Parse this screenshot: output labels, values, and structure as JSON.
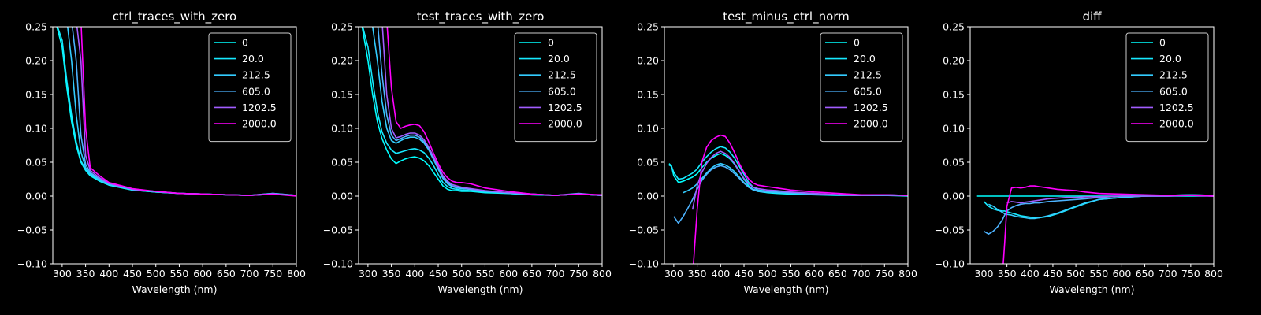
{
  "figure": {
    "background": "#000000",
    "foreground": "#ffffff"
  },
  "chart_data": [
    {
      "type": "line",
      "title": "ctrl_traces_with_zero",
      "xlabel": "Wavelength (nm)",
      "ylabel": "",
      "xlim": [
        280,
        800
      ],
      "ylim": [
        -0.1,
        0.25
      ],
      "xticks": [
        "300",
        "350",
        "400",
        "450",
        "500",
        "550",
        "600",
        "650",
        "700",
        "750",
        "800"
      ],
      "yticks": [
        "−0.10",
        "−0.05",
        "0.00",
        "0.05",
        "0.10",
        "0.15",
        "0.20",
        "0.25"
      ],
      "legend_position": "top-right",
      "x": [
        285,
        300,
        310,
        320,
        330,
        340,
        350,
        360,
        380,
        400,
        450,
        500,
        550,
        600,
        650,
        700,
        750,
        800
      ],
      "series": [
        {
          "name": "0",
          "color": "#00ffff",
          "values": [
            0.26,
            0.22,
            0.16,
            0.11,
            0.075,
            0.05,
            0.038,
            0.03,
            0.022,
            0.016,
            0.009,
            0.006,
            0.004,
            0.003,
            0.002,
            0.001,
            0.003,
            0.001
          ]
        },
        {
          "name": "20.0",
          "color": "#16e9ff",
          "values": [
            0.26,
            0.23,
            0.17,
            0.12,
            0.08,
            0.052,
            0.039,
            0.031,
            0.023,
            0.017,
            0.009,
            0.006,
            0.004,
            0.003,
            0.002,
            0.001,
            0.003,
            0.001
          ]
        },
        {
          "name": "212.5",
          "color": "#33ccff",
          "values": [
            0.26,
            0.26,
            0.26,
            0.2,
            0.12,
            0.065,
            0.042,
            0.033,
            0.024,
            0.017,
            0.01,
            0.006,
            0.004,
            0.003,
            0.002,
            0.001,
            0.004,
            0.001
          ]
        },
        {
          "name": "605.0",
          "color": "#4db3ff",
          "values": [
            0.26,
            0.26,
            0.26,
            0.26,
            0.2,
            0.09,
            0.047,
            0.035,
            0.025,
            0.018,
            0.01,
            0.007,
            0.004,
            0.003,
            0.002,
            0.001,
            0.004,
            0.001
          ]
        },
        {
          "name": "1202.5",
          "color": "#a25dff",
          "values": [
            0.26,
            0.26,
            0.26,
            0.26,
            0.26,
            0.2,
            0.06,
            0.038,
            0.027,
            0.019,
            0.01,
            0.007,
            0.004,
            0.003,
            0.002,
            0.001,
            0.003,
            0.001
          ]
        },
        {
          "name": "2000.0",
          "color": "#ff00ff",
          "values": [
            0.26,
            0.26,
            0.26,
            0.26,
            0.26,
            0.26,
            0.1,
            0.042,
            0.03,
            0.02,
            0.011,
            0.007,
            0.004,
            0.003,
            0.002,
            0.001,
            0.003,
            0.0
          ]
        }
      ]
    },
    {
      "type": "line",
      "title": "test_traces_with_zero",
      "xlabel": "Wavelength (nm)",
      "ylabel": "",
      "xlim": [
        280,
        800
      ],
      "ylim": [
        -0.1,
        0.25
      ],
      "xticks": [
        "300",
        "350",
        "400",
        "450",
        "500",
        "550",
        "600",
        "650",
        "700",
        "750",
        "800"
      ],
      "yticks": [
        "−0.10",
        "−0.05",
        "0.00",
        "0.05",
        "0.10",
        "0.15",
        "0.20",
        "0.25"
      ],
      "legend_position": "top-right",
      "x": [
        285,
        300,
        310,
        320,
        330,
        340,
        350,
        360,
        370,
        380,
        390,
        400,
        410,
        420,
        430,
        440,
        450,
        460,
        470,
        480,
        490,
        500,
        520,
        550,
        600,
        650,
        700,
        750,
        800
      ],
      "series": [
        {
          "name": "0",
          "color": "#00ffff",
          "values": [
            0.26,
            0.2,
            0.15,
            0.11,
            0.085,
            0.068,
            0.055,
            0.048,
            0.052,
            0.055,
            0.057,
            0.058,
            0.056,
            0.052,
            0.045,
            0.035,
            0.025,
            0.015,
            0.01,
            0.008,
            0.008,
            0.007,
            0.007,
            0.005,
            0.004,
            0.002,
            0.001,
            0.003,
            0.001
          ]
        },
        {
          "name": "20.0",
          "color": "#16e9ff",
          "values": [
            0.26,
            0.22,
            0.17,
            0.125,
            0.095,
            0.078,
            0.068,
            0.063,
            0.065,
            0.067,
            0.069,
            0.07,
            0.068,
            0.064,
            0.056,
            0.045,
            0.032,
            0.02,
            0.014,
            0.011,
            0.01,
            0.009,
            0.008,
            0.006,
            0.004,
            0.002,
            0.001,
            0.003,
            0.001
          ]
        },
        {
          "name": "212.5",
          "color": "#33ccff",
          "values": [
            0.26,
            0.26,
            0.25,
            0.2,
            0.14,
            0.1,
            0.082,
            0.078,
            0.082,
            0.085,
            0.087,
            0.087,
            0.084,
            0.078,
            0.068,
            0.054,
            0.04,
            0.026,
            0.018,
            0.014,
            0.012,
            0.011,
            0.01,
            0.007,
            0.005,
            0.003,
            0.001,
            0.003,
            0.001
          ]
        },
        {
          "name": "605.0",
          "color": "#4db3ff",
          "values": [
            0.26,
            0.26,
            0.26,
            0.26,
            0.18,
            0.12,
            0.09,
            0.082,
            0.085,
            0.088,
            0.09,
            0.09,
            0.087,
            0.08,
            0.07,
            0.056,
            0.042,
            0.028,
            0.02,
            0.015,
            0.013,
            0.012,
            0.01,
            0.007,
            0.005,
            0.003,
            0.001,
            0.004,
            0.001
          ]
        },
        {
          "name": "1202.5",
          "color": "#a25dff",
          "values": [
            0.26,
            0.26,
            0.26,
            0.26,
            0.26,
            0.15,
            0.1,
            0.086,
            0.088,
            0.091,
            0.093,
            0.093,
            0.09,
            0.083,
            0.072,
            0.058,
            0.044,
            0.03,
            0.022,
            0.017,
            0.015,
            0.013,
            0.011,
            0.008,
            0.005,
            0.003,
            0.001,
            0.003,
            0.001
          ]
        },
        {
          "name": "2000.0",
          "color": "#ff00ff",
          "values": [
            0.26,
            0.26,
            0.26,
            0.26,
            0.26,
            0.26,
            0.16,
            0.11,
            0.1,
            0.103,
            0.105,
            0.106,
            0.104,
            0.095,
            0.08,
            0.063,
            0.048,
            0.035,
            0.027,
            0.022,
            0.02,
            0.02,
            0.018,
            0.012,
            0.007,
            0.003,
            0.001,
            0.003,
            0.002
          ]
        }
      ]
    },
    {
      "type": "line",
      "title": "test_minus_ctrl_norm",
      "xlabel": "Wavelength (nm)",
      "ylabel": "",
      "xlim": [
        280,
        800
      ],
      "ylim": [
        -0.1,
        0.25
      ],
      "xticks": [
        "300",
        "350",
        "400",
        "450",
        "500",
        "550",
        "600",
        "650",
        "700",
        "750",
        "800"
      ],
      "yticks": [
        "−0.10",
        "−0.05",
        "0.00",
        "0.05",
        "0.10",
        "0.15",
        "0.20",
        "0.25"
      ],
      "legend_position": "top-right",
      "x": [
        290,
        295,
        300,
        310,
        320,
        330,
        340,
        350,
        360,
        370,
        380,
        390,
        400,
        410,
        420,
        430,
        440,
        450,
        460,
        470,
        480,
        490,
        500,
        520,
        550,
        600,
        650,
        700,
        750,
        800
      ],
      "series": [
        {
          "name": "0",
          "color": "#00ffff",
          "values": [
            0.048,
            0.045,
            0.03,
            0.02,
            0.022,
            0.025,
            0.028,
            0.033,
            0.042,
            0.05,
            0.056,
            0.06,
            0.063,
            0.06,
            0.055,
            0.047,
            0.036,
            0.025,
            0.015,
            0.01,
            0.007,
            0.006,
            0.005,
            0.004,
            0.003,
            0.002,
            0.001,
            0.001,
            0.001,
            0.001
          ]
        },
        {
          "name": "20.0",
          "color": "#16e9ff",
          "values": [
            0.046,
            0.044,
            0.035,
            0.025,
            0.026,
            0.03,
            0.034,
            0.04,
            0.05,
            0.058,
            0.065,
            0.07,
            0.073,
            0.071,
            0.065,
            0.056,
            0.044,
            0.032,
            0.02,
            0.013,
            0.009,
            0.008,
            0.007,
            0.005,
            0.004,
            0.003,
            0.002,
            0.001,
            0.001,
            0.0
          ]
        },
        {
          "name": "212.5",
          "color": "#33ccff",
          "values": [
            null,
            null,
            null,
            null,
            0.005,
            0.008,
            0.012,
            0.018,
            0.026,
            0.034,
            0.041,
            0.046,
            0.048,
            0.046,
            0.042,
            0.036,
            0.028,
            0.02,
            0.013,
            0.009,
            0.007,
            0.006,
            0.006,
            0.005,
            0.004,
            0.003,
            0.002,
            0.001,
            0.002,
            0.001
          ]
        },
        {
          "name": "605.0",
          "color": "#4db3ff",
          "values": [
            null,
            null,
            -0.03,
            -0.04,
            -0.03,
            -0.018,
            -0.005,
            0.01,
            0.023,
            0.032,
            0.039,
            0.043,
            0.045,
            0.043,
            0.039,
            0.033,
            0.026,
            0.019,
            0.013,
            0.01,
            0.008,
            0.007,
            0.007,
            0.006,
            0.005,
            0.003,
            0.002,
            0.001,
            0.001,
            0.001
          ]
        },
        {
          "name": "1202.5",
          "color": "#a25dff",
          "values": [
            null,
            null,
            null,
            null,
            null,
            null,
            -0.02,
            0.015,
            0.035,
            0.048,
            0.057,
            0.063,
            0.066,
            0.063,
            0.057,
            0.048,
            0.037,
            0.026,
            0.018,
            0.013,
            0.011,
            0.01,
            0.009,
            0.008,
            0.006,
            0.004,
            0.002,
            0.001,
            0.002,
            0.001
          ]
        },
        {
          "name": "2000.0",
          "color": "#ff00ff",
          "values": [
            null,
            null,
            null,
            null,
            null,
            null,
            -0.12,
            -0.02,
            0.05,
            0.072,
            0.082,
            0.087,
            0.09,
            0.088,
            0.078,
            0.064,
            0.048,
            0.035,
            0.025,
            0.019,
            0.016,
            0.015,
            0.014,
            0.012,
            0.009,
            0.006,
            0.004,
            0.002,
            0.002,
            0.001
          ]
        }
      ]
    },
    {
      "type": "line",
      "title": "diff",
      "xlabel": "Wavelength (nm)",
      "ylabel": "",
      "xlim": [
        270,
        800
      ],
      "ylim": [
        -0.1,
        0.25
      ],
      "xticks": [
        "300",
        "350",
        "400",
        "450",
        "500",
        "550",
        "600",
        "650",
        "700",
        "750",
        "800"
      ],
      "yticks": [
        "−0.10",
        "−0.05",
        "0.00",
        "0.05",
        "0.10",
        "0.15",
        "0.20",
        "0.25"
      ],
      "legend_position": "top-right",
      "x": [
        285,
        290,
        300,
        310,
        320,
        330,
        340,
        345,
        350,
        360,
        370,
        380,
        390,
        400,
        410,
        420,
        440,
        460,
        480,
        500,
        520,
        550,
        600,
        650,
        700,
        750,
        800
      ],
      "series": [
        {
          "name": "0",
          "color": "#00ffff",
          "values": [
            0.0,
            0.0,
            0.0,
            0.0,
            0.0,
            0.0,
            0.0,
            0.0,
            0.0,
            0.0,
            0.0,
            0.0,
            0.0,
            0.0,
            0.0,
            0.0,
            0.0,
            0.0,
            0.0,
            0.0,
            0.0,
            0.0,
            0.0,
            0.0,
            0.0,
            0.0,
            0.0
          ]
        },
        {
          "name": "20.0",
          "color": "#16e9ff",
          "values": [
            null,
            null,
            -0.008,
            -0.015,
            -0.019,
            -0.021,
            -0.022,
            -0.022,
            -0.023,
            -0.025,
            -0.027,
            -0.029,
            -0.03,
            -0.031,
            -0.032,
            -0.032,
            -0.03,
            -0.026,
            -0.021,
            -0.016,
            -0.011,
            -0.005,
            -0.002,
            0.0,
            0.0,
            0.001,
            0.0
          ]
        },
        {
          "name": "212.5",
          "color": "#33ccff",
          "values": [
            null,
            null,
            null,
            -0.012,
            -0.015,
            -0.02,
            -0.024,
            -0.026,
            -0.027,
            -0.028,
            -0.03,
            -0.031,
            -0.032,
            -0.033,
            -0.033,
            -0.032,
            -0.029,
            -0.025,
            -0.02,
            -0.015,
            -0.01,
            -0.005,
            -0.002,
            0.0,
            0.001,
            0.002,
            0.001
          ]
        },
        {
          "name": "605.0",
          "color": "#4db3ff",
          "values": [
            null,
            null,
            -0.052,
            -0.056,
            -0.052,
            -0.045,
            -0.035,
            -0.028,
            -0.022,
            -0.017,
            -0.014,
            -0.012,
            -0.011,
            -0.011,
            -0.01,
            -0.01,
            -0.008,
            -0.007,
            -0.006,
            -0.005,
            -0.004,
            -0.002,
            0.0,
            0.0,
            0.001,
            0.002,
            0.001
          ]
        },
        {
          "name": "1202.5",
          "color": "#a25dff",
          "values": [
            null,
            null,
            null,
            null,
            null,
            null,
            null,
            null,
            -0.01,
            -0.008,
            -0.009,
            -0.01,
            -0.009,
            -0.008,
            -0.007,
            -0.006,
            -0.004,
            -0.003,
            -0.002,
            -0.002,
            -0.001,
            -0.001,
            0.0,
            0.0,
            0.0,
            0.001,
            0.0
          ]
        },
        {
          "name": "2000.0",
          "color": "#ff00ff",
          "values": [
            null,
            null,
            null,
            null,
            null,
            null,
            -0.12,
            -0.07,
            -0.015,
            0.012,
            0.013,
            0.012,
            0.013,
            0.015,
            0.015,
            0.014,
            0.012,
            0.01,
            0.009,
            0.008,
            0.006,
            0.004,
            0.003,
            0.002,
            0.001,
            0.001,
            0.0
          ]
        }
      ]
    }
  ]
}
